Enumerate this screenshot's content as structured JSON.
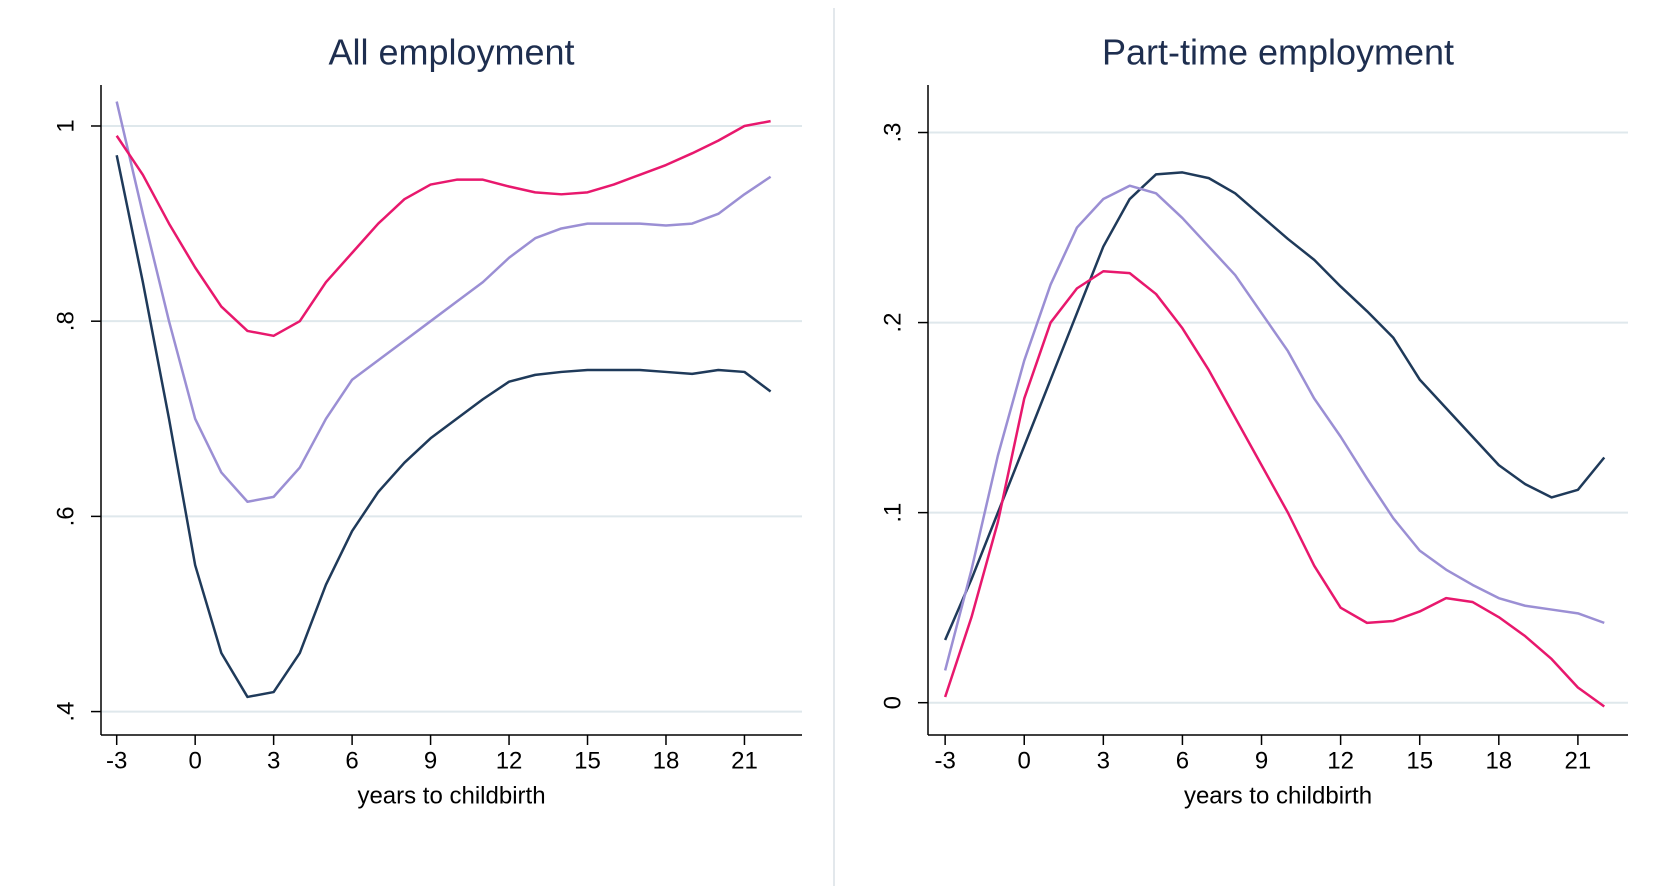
{
  "chart_data": [
    {
      "type": "line",
      "title": "All employment",
      "x_label": "years to childbirth",
      "x": [
        -3,
        -2,
        -1,
        0,
        1,
        2,
        3,
        4,
        5,
        6,
        7,
        8,
        9,
        10,
        11,
        12,
        13,
        14,
        15,
        16,
        17,
        18,
        19,
        20,
        21,
        22
      ],
      "series": [
        {
          "color": "#1f3a5a",
          "values": [
            0.97,
            0.84,
            0.7,
            0.55,
            0.46,
            0.415,
            0.42,
            0.46,
            0.53,
            0.585,
            0.625,
            0.655,
            0.68,
            0.7,
            0.72,
            0.738,
            0.745,
            0.748,
            0.75,
            0.75,
            0.75,
            0.748,
            0.746,
            0.75,
            0.748,
            0.728
          ]
        },
        {
          "color": "#9b8fd4",
          "values": [
            1.025,
            0.91,
            0.8,
            0.7,
            0.645,
            0.615,
            0.62,
            0.65,
            0.7,
            0.74,
            0.76,
            0.78,
            0.8,
            0.82,
            0.84,
            0.865,
            0.885,
            0.895,
            0.9,
            0.9,
            0.9,
            0.898,
            0.9,
            0.91,
            0.93,
            0.948
          ]
        },
        {
          "color": "#e8186d",
          "values": [
            0.99,
            0.95,
            0.9,
            0.855,
            0.815,
            0.79,
            0.785,
            0.8,
            0.84,
            0.87,
            0.9,
            0.925,
            0.94,
            0.945,
            0.945,
            0.938,
            0.932,
            0.93,
            0.932,
            0.94,
            0.95,
            0.96,
            0.972,
            0.985,
            1.0,
            1.005
          ]
        }
      ],
      "xlim": [
        -3.6,
        23.2
      ],
      "xticks": [
        -3,
        0,
        3,
        6,
        9,
        12,
        15,
        18,
        21
      ],
      "ylim": [
        0.376,
        1.042
      ],
      "yticks": [
        {
          "value": 0.4,
          "label": ".4"
        },
        {
          "value": 0.6,
          "label": ".6"
        },
        {
          "value": 0.8,
          "label": ".8"
        },
        1
      ],
      "grid": true
    },
    {
      "type": "line",
      "title": "Part-time employment",
      "x_label": "years to childbirth",
      "x": [
        -3,
        -2,
        -1,
        0,
        1,
        2,
        3,
        4,
        5,
        6,
        7,
        8,
        9,
        10,
        11,
        12,
        13,
        14,
        15,
        16,
        17,
        18,
        19,
        20,
        21,
        22
      ],
      "series": [
        {
          "color": "#1f3a5a",
          "values": [
            0.033,
            0.065,
            0.1,
            0.135,
            0.17,
            0.205,
            0.24,
            0.265,
            0.278,
            0.279,
            0.276,
            0.268,
            0.256,
            0.244,
            0.233,
            0.219,
            0.206,
            0.192,
            0.17,
            0.155,
            0.14,
            0.125,
            0.115,
            0.108,
            0.112,
            0.129
          ]
        },
        {
          "color": "#9b8fd4",
          "values": [
            0.017,
            0.07,
            0.13,
            0.18,
            0.22,
            0.25,
            0.265,
            0.272,
            0.268,
            0.255,
            0.24,
            0.225,
            0.205,
            0.185,
            0.16,
            0.14,
            0.118,
            0.097,
            0.08,
            0.07,
            0.062,
            0.055,
            0.051,
            0.049,
            0.047,
            0.042
          ]
        },
        {
          "color": "#e8186d",
          "values": [
            0.003,
            0.045,
            0.095,
            0.16,
            0.2,
            0.218,
            0.227,
            0.226,
            0.215,
            0.197,
            0.175,
            0.15,
            0.125,
            0.1,
            0.072,
            0.05,
            0.042,
            0.043,
            0.048,
            0.055,
            0.053,
            0.045,
            0.035,
            0.023,
            0.008,
            -0.002
          ]
        }
      ],
      "xlim": [
        -3.65,
        22.9
      ],
      "xticks": [
        -3,
        0,
        3,
        6,
        9,
        12,
        15,
        18,
        21
      ],
      "ylim": [
        -0.017,
        0.325
      ],
      "yticks": [
        0,
        {
          "value": 0.1,
          "label": ".1"
        },
        {
          "value": 0.2,
          "label": ".2"
        },
        {
          "value": 0.3,
          "label": ".3"
        }
      ],
      "grid": true
    }
  ]
}
